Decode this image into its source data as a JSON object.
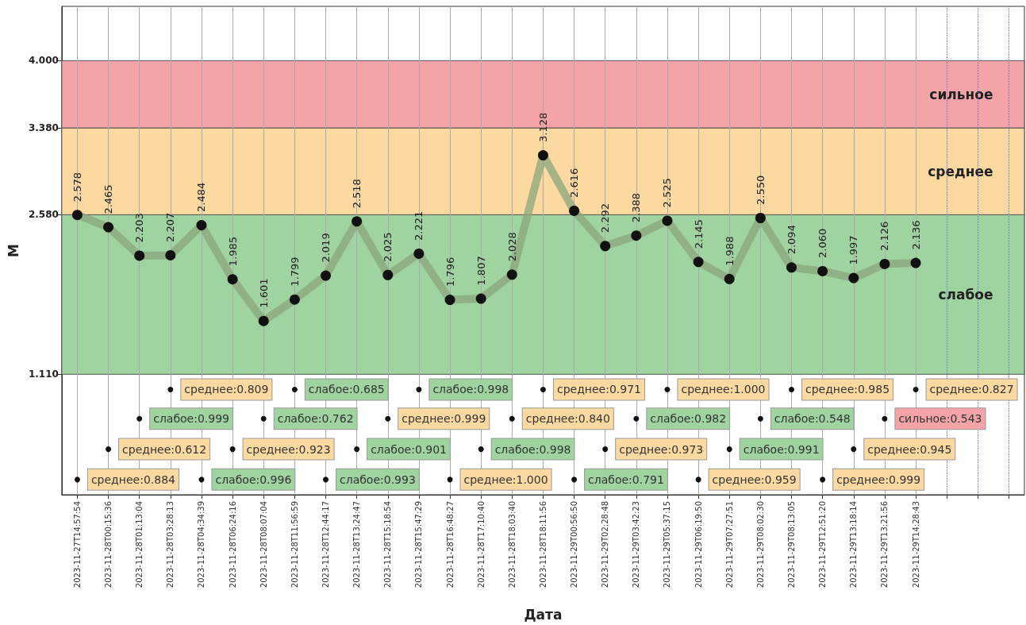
{
  "chart_data": {
    "type": "line",
    "xlabel": "Дата",
    "ylabel": "M",
    "categories": [
      "2023-11-27T14:57:54",
      "2023-11-28T00:15:36",
      "2023-11-28T01:13:04",
      "2023-11-28T03:28:13",
      "2023-11-28T04:34:39",
      "2023-11-28T06:24:16",
      "2023-11-28T08:07:04",
      "2023-11-28T11:56:59",
      "2023-11-28T12:44:17",
      "2023-11-28T13:24:47",
      "2023-11-28T15:18:54",
      "2023-11-28T15:47:29",
      "2023-11-28T16:48:27",
      "2023-11-28T17:10:40",
      "2023-11-28T18:03:40",
      "2023-11-28T18:11:56",
      "2023-11-29T00:56:50",
      "2023-11-29T02:28:48",
      "2023-11-29T03:42:23",
      "2023-11-29T05:37:15",
      "2023-11-29T06:19:50",
      "2023-11-29T07:27:51",
      "2023-11-29T08:02:30",
      "2023-11-29T08:13:05",
      "2023-11-29T12:51:20",
      "2023-11-29T13:18:14",
      "2023-11-29T13:21:56",
      "2023-11-29T14:28:43",
      null,
      null,
      null
    ],
    "series": [
      {
        "color": "#8ba57c",
        "marker": "circle",
        "values": [
          2.578,
          2.465,
          2.203,
          2.207,
          2.484,
          1.985,
          1.601,
          1.799,
          2.019,
          2.518,
          2.025,
          2.221,
          1.796,
          1.807,
          2.028,
          3.128,
          2.616,
          2.292,
          2.388,
          2.525,
          2.145,
          1.988,
          2.55,
          2.094,
          2.06,
          1.997,
          2.126,
          2.136,
          null,
          null,
          null
        ],
        "value_labels": [
          "2.578",
          "2.465",
          "2.203",
          "2.207",
          "2.484",
          "1.985",
          "1.601",
          "1.799",
          "2.019",
          "2.518",
          "2.025",
          "2.221",
          "1.796",
          "1.807",
          "2.028",
          "3.128",
          "2.616",
          "2.292",
          "2.388",
          "2.525",
          "2.145",
          "1.988",
          "2.550",
          "2.094",
          "2.060",
          "1.997",
          "2.126",
          "2.136",
          null,
          null,
          null
        ]
      }
    ],
    "annotations": [
      {
        "text": "среднее:0.884",
        "x": "2023-11-27T14:57:54",
        "y": 0.14
      },
      {
        "text": "среднее:0.612",
        "x": "2023-11-28T00:15:36",
        "y": 0.42
      },
      {
        "text": "слабое:0.999",
        "x": "2023-11-28T01:13:04",
        "y": 0.7
      },
      {
        "text": "среднее:0.809",
        "x": "2023-11-28T03:28:13",
        "y": 0.97
      },
      {
        "text": "слабое:0.996",
        "x": "2023-11-28T04:34:39",
        "y": 0.14
      },
      {
        "text": "среднее:0.923",
        "x": "2023-11-28T06:24:16",
        "y": 0.42
      },
      {
        "text": "слабое:0.762",
        "x": "2023-11-28T08:07:04",
        "y": 0.7
      },
      {
        "text": "слабое:0.685",
        "x": "2023-11-28T11:56:59",
        "y": 0.97
      },
      {
        "text": "слабое:0.993",
        "x": "2023-11-28T12:44:17",
        "y": 0.14
      },
      {
        "text": "слабое:0.901",
        "x": "2023-11-28T13:24:47",
        "y": 0.42
      },
      {
        "text": "среднее:0.999",
        "x": "2023-11-28T15:18:54",
        "y": 0.7
      },
      {
        "text": "слабое:0.998",
        "x": "2023-11-28T15:47:29",
        "y": 0.97
      },
      {
        "text": "среднее:1.000",
        "x": "2023-11-28T16:48:27",
        "y": 0.14
      },
      {
        "text": "слабое:0.998",
        "x": "2023-11-28T17:10:40",
        "y": 0.42
      },
      {
        "text": "среднее:0.840",
        "x": "2023-11-28T18:03:40",
        "y": 0.7
      },
      {
        "text": "среднее:0.971",
        "x": "2023-11-28T18:11:56",
        "y": 0.97
      },
      {
        "text": "слабое:0.791",
        "x": "2023-11-29T00:56:50",
        "y": 0.14
      },
      {
        "text": "среднее:0.973",
        "x": "2023-11-29T02:28:48",
        "y": 0.42
      },
      {
        "text": "слабое:0.982",
        "x": "2023-11-29T03:42:23",
        "y": 0.7
      },
      {
        "text": "среднее:1.000",
        "x": "2023-11-29T05:37:15",
        "y": 0.97
      },
      {
        "text": "среднее:0.959",
        "x": "2023-11-29T06:19:50",
        "y": 0.14
      },
      {
        "text": "слабое:0.991",
        "x": "2023-11-29T07:27:51",
        "y": 0.42
      },
      {
        "text": "слабое:0.548",
        "x": "2023-11-29T08:02:30",
        "y": 0.7
      },
      {
        "text": "среднее:0.985",
        "x": "2023-11-29T08:13:05",
        "y": 0.97
      },
      {
        "text": "среднее:0.999",
        "x": "2023-11-29T12:51:20",
        "y": 0.14
      },
      {
        "text": "среднее:0.945",
        "x": "2023-11-29T13:18:14",
        "y": 0.42
      },
      {
        "text": "сильное:0.543",
        "x": "2023-11-29T13:21:56",
        "y": 0.7
      },
      {
        "text": "среднее:0.827",
        "x": "2023-11-29T14:28:43",
        "y": 0.97
      }
    ],
    "ylim": [
      0,
      4.5
    ],
    "yticks": [
      {
        "value": 1.11,
        "label": "1.110"
      },
      {
        "value": 2.58,
        "label": "2.580"
      },
      {
        "value": 3.38,
        "label": "3.380"
      },
      {
        "value": 4.0,
        "label": "4.000"
      }
    ],
    "bands": [
      {
        "axis": "y",
        "from": 1.11,
        "to": 2.58,
        "label": "слабое",
        "color": "#9fd3a0"
      },
      {
        "axis": "y",
        "from": 2.58,
        "to": 3.38,
        "label": "среднее",
        "color": "#fbd9a0"
      },
      {
        "axis": "y",
        "from": 3.38,
        "to": 4.0,
        "label": "сильное",
        "color": "#f4a4a6"
      }
    ],
    "grid": "x"
  }
}
